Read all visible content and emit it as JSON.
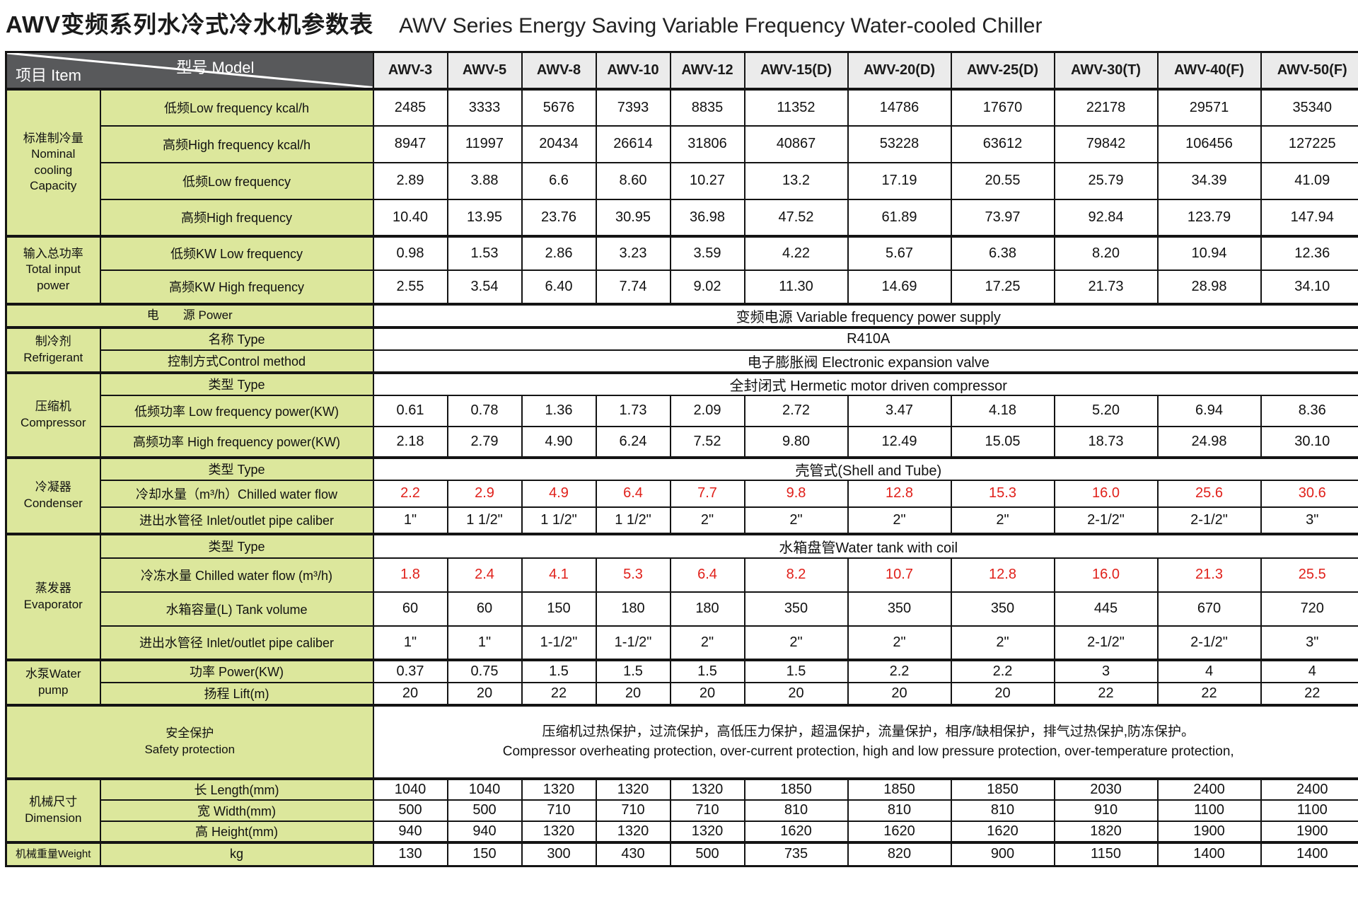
{
  "page_title": {
    "zh": "AWV变频系列水冷式冷水机参数表",
    "en": "AWV Series Energy Saving Variable Frequency Water-cooled Chiller"
  },
  "colors": {
    "label_bg": "#dce79c",
    "corner_header_bg": "#58595b",
    "model_header_bg": "#ebebeb",
    "highlight_red": "#e0201a",
    "border": "#141414"
  },
  "header": {
    "model_label": "型号  Model",
    "item_label": "项目  Item",
    "models": [
      "AWV-3",
      "AWV-5",
      "AWV-8",
      "AWV-10",
      "AWV-12",
      "AWV-15(D)",
      "AWV-20(D)",
      "AWV-25(D)",
      "AWV-30(T)",
      "AWV-40(F)",
      "AWV-50(F)"
    ]
  },
  "group_labels": {
    "capacity": "标准制冷量\nNominal\ncooling\nCapacity",
    "input_power": "输入总功率\nTotal input\npower",
    "refrigerant": "制冷剂\nRefrigerant",
    "compressor": "压缩机\nCompressor",
    "condenser": "冷凝器\nCondenser",
    "evaporator": "蒸发器\nEvaporator",
    "pump": "水泵Water\npump",
    "dimension": "机械尺寸\nDimension",
    "weight": "机械重量Weight"
  },
  "rows": {
    "lf_kcal": {
      "label": "低频Low frequency  kcal/h",
      "values": [
        "2485",
        "3333",
        "5676",
        "7393",
        "8835",
        "11352",
        "14786",
        "17670",
        "22178",
        "29571",
        "35340"
      ]
    },
    "hf_kcal": {
      "label": "高频High frequency  kcal/h",
      "values": [
        "8947",
        "11997",
        "20434",
        "26614",
        "31806",
        "40867",
        "53228",
        "63612",
        "79842",
        "106456",
        "127225"
      ]
    },
    "lf": {
      "label": "低频Low frequency",
      "values": [
        "2.89",
        "3.88",
        "6.6",
        "8.60",
        "10.27",
        "13.2",
        "17.19",
        "20.55",
        "25.79",
        "34.39",
        "41.09"
      ]
    },
    "hf": {
      "label": "高频High frequency",
      "values": [
        "10.40",
        "13.95",
        "23.76",
        "30.95",
        "36.98",
        "47.52",
        "61.89",
        "73.97",
        "92.84",
        "123.79",
        "147.94"
      ]
    },
    "lf_kw": {
      "label": "低频KW  Low frequency",
      "values": [
        "0.98",
        "1.53",
        "2.86",
        "3.23",
        "3.59",
        "4.22",
        "5.67",
        "6.38",
        "8.20",
        "10.94",
        "12.36"
      ]
    },
    "hf_kw": {
      "label": "高频KW   High frequency",
      "values": [
        "2.55",
        "3.54",
        "6.40",
        "7.74",
        "9.02",
        "11.30",
        "14.69",
        "17.25",
        "21.73",
        "28.98",
        "34.10"
      ]
    },
    "power": {
      "label": "电　　源  Power",
      "value": "变频电源 Variable frequency power supply"
    },
    "ref_name": {
      "label": "名称  Type",
      "value": "R410A"
    },
    "ref_control": {
      "label": "控制方式Control method",
      "value": "电子膨胀阀 Electronic expansion valve"
    },
    "comp_type": {
      "label": "类型 Type",
      "value": "全封闭式 Hermetic motor driven compressor"
    },
    "comp_lf": {
      "label": "低频功率  Low frequency power(KW)",
      "values": [
        "0.61",
        "0.78",
        "1.36",
        "1.73",
        "2.09",
        "2.72",
        "3.47",
        "4.18",
        "5.20",
        "6.94",
        "8.36"
      ]
    },
    "comp_hf": {
      "label": "高频功率 High frequency power(KW)",
      "values": [
        "2.18",
        "2.79",
        "4.90",
        "6.24",
        "7.52",
        "9.80",
        "12.49",
        "15.05",
        "18.73",
        "24.98",
        "30.10"
      ]
    },
    "cond_type": {
      "label": "类型 Type",
      "value": "壳管式(Shell and Tube)"
    },
    "cond_flow": {
      "label": "冷却水量（m³/h）Chilled water flow",
      "values": [
        "2.2",
        "2.9",
        "4.9",
        "6.4",
        "7.7",
        "9.8",
        "12.8",
        "15.3",
        "16.0",
        "25.6",
        "30.6"
      ]
    },
    "cond_pipe": {
      "label": "进出水管径 Inlet/outlet pipe caliber",
      "values": [
        "1\"",
        "1 1/2\"",
        "1 1/2\"",
        "1 1/2\"",
        "2\"",
        "2\"",
        "2\"",
        "2\"",
        "2-1/2\"",
        "2-1/2\"",
        "3\""
      ]
    },
    "evap_type": {
      "label": "类型 Type",
      "value": "水箱盘管Water tank with coil"
    },
    "evap_flow": {
      "label": "冷冻水量 Chilled water flow (m³/h)",
      "values": [
        "1.8",
        "2.4",
        "4.1",
        "5.3",
        "6.4",
        "8.2",
        "10.7",
        "12.8",
        "16.0",
        "21.3",
        "25.5"
      ]
    },
    "tank": {
      "label": "水箱容量(L) Tank volume",
      "values": [
        "60",
        "60",
        "150",
        "180",
        "180",
        "350",
        "350",
        "350",
        "445",
        "670",
        "720"
      ]
    },
    "evap_pipe": {
      "label": "进出水管径   Inlet/outlet pipe caliber",
      "values": [
        "1\"",
        "1\"",
        "1-1/2\"",
        "1-1/2\"",
        "2\"",
        "2\"",
        "2\"",
        "2\"",
        "2-1/2\"",
        "2-1/2\"",
        "3\""
      ]
    },
    "pump_power": {
      "label": "功率  Power(KW)",
      "values": [
        "0.37",
        "0.75",
        "1.5",
        "1.5",
        "1.5",
        "1.5",
        "2.2",
        "2.2",
        "3",
        "4",
        "4"
      ]
    },
    "lift": {
      "label": "扬程  Lift(m)",
      "values": [
        "20",
        "20",
        "22",
        "20",
        "20",
        "20",
        "20",
        "20",
        "22",
        "22",
        "22"
      ]
    },
    "safety": {
      "label": "安全保护\nSafety protection",
      "value_zh": "压缩机过热保护，过流保护，高低压力保护，超温保护，流量保护，相序/缺相保护，排气过热保护,防冻保护。",
      "value_en": "Compressor overheating protection, over-current protection, high and low pressure protection, over-temperature protection,"
    },
    "length": {
      "label": "长  Length(mm)",
      "values": [
        "1040",
        "1040",
        "1320",
        "1320",
        "1320",
        "1850",
        "1850",
        "1850",
        "2030",
        "2400",
        "2400"
      ]
    },
    "width": {
      "label": "宽  Width(mm)",
      "values": [
        "500",
        "500",
        "710",
        "710",
        "710",
        "810",
        "810",
        "810",
        "910",
        "1100",
        "1100"
      ]
    },
    "height": {
      "label": "高  Height(mm)",
      "values": [
        "940",
        "940",
        "1320",
        "1320",
        "1320",
        "1620",
        "1620",
        "1620",
        "1820",
        "1900",
        "1900"
      ]
    },
    "weight_kg": {
      "label": "kg",
      "values": [
        "130",
        "150",
        "300",
        "430",
        "500",
        "735",
        "820",
        "900",
        "1150",
        "1400",
        "1400"
      ]
    }
  }
}
